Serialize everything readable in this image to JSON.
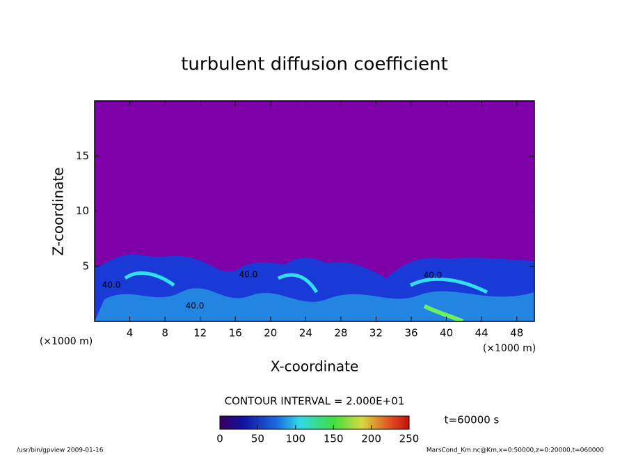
{
  "chart_data": {
    "type": "contour",
    "title": "turbulent diffusion coefficient",
    "x_label": "X-coordinate",
    "y_label": "Z-coordinate",
    "x_unit": "(×1000 m)",
    "y_unit": "(×1000 m)",
    "xlim": [
      0,
      50
    ],
    "xticks": [
      4,
      8,
      12,
      16,
      20,
      24,
      28,
      32,
      36,
      40,
      44,
      48
    ],
    "ylim": [
      0,
      20
    ],
    "yticks": [
      5,
      10,
      15
    ],
    "contour_interval": "CONTOUR INTERVAL = 2.000E+01",
    "contour_labels": [
      "40.0",
      "40.0",
      "40.0",
      "40.0"
    ],
    "time": "t=60000 s",
    "clim": [
      0,
      250
    ],
    "cticks": [
      0,
      50,
      100,
      150,
      200,
      250
    ],
    "footer_left": "/usr/bin/gpview  2009-01-16",
    "footer_right": "MarsCond_Km.nc@Km,x=0:50000,z=0:20000,t=060000"
  }
}
